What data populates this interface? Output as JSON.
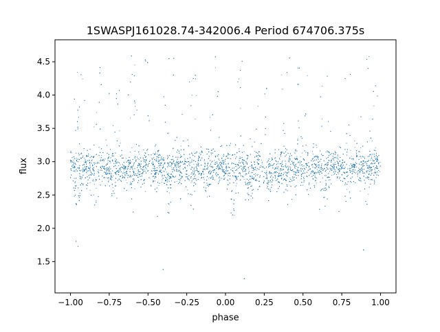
{
  "chart_data": {
    "type": "scatter",
    "title": "1SWASPJ161028.74-342006.4 Period 674706.375s",
    "xlabel": "phase",
    "ylabel": "flux",
    "xlim": [
      -1.1,
      1.1
    ],
    "ylim": [
      1.03,
      4.83
    ],
    "xticks": [
      -1.0,
      -0.75,
      -0.5,
      -0.25,
      0.0,
      0.25,
      0.5,
      0.75,
      1.0
    ],
    "xtick_labels": [
      "−1.00",
      "−0.75",
      "−0.50",
      "−0.25",
      "0.00",
      "0.25",
      "0.50",
      "0.75",
      "1.00"
    ],
    "yticks": [
      1.5,
      2.0,
      2.5,
      3.0,
      3.5,
      4.0,
      4.5
    ],
    "ytick_labels": [
      "1.5",
      "2.0",
      "2.5",
      "3.0",
      "3.5",
      "4.0",
      "4.5"
    ],
    "grid": false,
    "point_color": "#1f77b4",
    "n_points": 7000,
    "baseline_flux": 2.92,
    "x_range": [
      -1.0,
      1.0
    ],
    "y_range": [
      1.2,
      4.65
    ],
    "dips": [
      {
        "phase": -0.95,
        "min_flux": 2.0
      },
      {
        "phase": -0.84,
        "min_flux": 2.3
      },
      {
        "phase": -0.72,
        "min_flux": 2.4
      },
      {
        "phase": -0.6,
        "min_flux": 2.5
      },
      {
        "phase": -0.37,
        "min_flux": 2.4
      },
      {
        "phase": -0.22,
        "min_flux": 2.2
      },
      {
        "phase": -0.12,
        "min_flux": 2.4
      },
      {
        "phase": 0.05,
        "min_flux": 2.0
      },
      {
        "phase": 0.16,
        "min_flux": 2.3
      },
      {
        "phase": 0.28,
        "min_flux": 2.4
      },
      {
        "phase": 0.4,
        "min_flux": 2.5
      },
      {
        "phase": 0.64,
        "min_flux": 2.3
      },
      {
        "phase": 0.78,
        "min_flux": 2.2
      },
      {
        "phase": 0.9,
        "min_flux": 2.4
      }
    ],
    "flares": [
      {
        "phase": -0.95,
        "max_flux": 4.6
      },
      {
        "phase": -0.83,
        "max_flux": 4.5
      },
      {
        "phase": -0.7,
        "max_flux": 4.3
      },
      {
        "phase": -0.6,
        "max_flux": 4.6
      },
      {
        "phase": -0.51,
        "max_flux": 4.65
      },
      {
        "phase": -0.36,
        "max_flux": 4.6
      },
      {
        "phase": -0.22,
        "max_flux": 4.3
      },
      {
        "phase": -0.07,
        "max_flux": 4.6
      },
      {
        "phase": 0.09,
        "max_flux": 4.5
      },
      {
        "phase": 0.24,
        "max_flux": 4.3
      },
      {
        "phase": 0.39,
        "max_flux": 4.6
      },
      {
        "phase": 0.49,
        "max_flux": 4.65
      },
      {
        "phase": 0.64,
        "max_flux": 4.5
      },
      {
        "phase": 0.78,
        "max_flux": 4.3
      },
      {
        "phase": 0.94,
        "max_flux": 4.65
      }
    ]
  }
}
